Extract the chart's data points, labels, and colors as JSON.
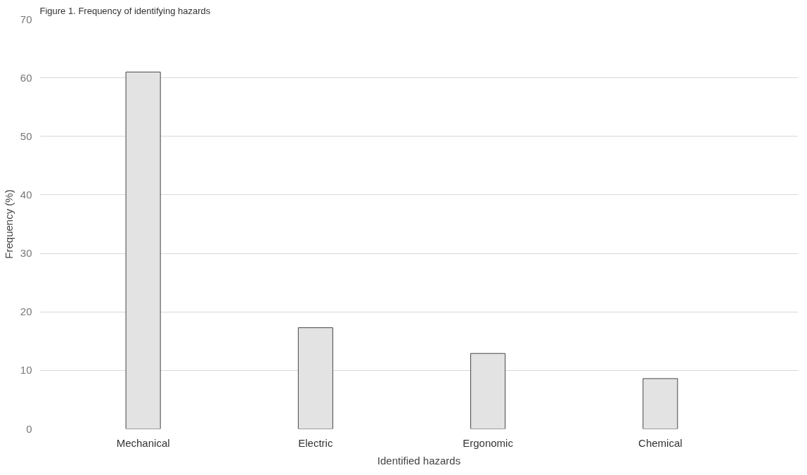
{
  "chart_data": {
    "type": "bar",
    "title": "Figure 1. Frequency of identifying hazards",
    "xlabel": "Identified hazards",
    "ylabel": "Frequency (%)",
    "categories": [
      "Mechanical",
      "Electric",
      "Ergonomic",
      "Chemical"
    ],
    "values": [
      61,
      17.3,
      12.9,
      8.6
    ],
    "color": "#e3e3e3",
    "ylim": [
      0,
      70
    ],
    "yticks": [
      0,
      10,
      20,
      30,
      40,
      50,
      60,
      70
    ],
    "grid": "y"
  }
}
